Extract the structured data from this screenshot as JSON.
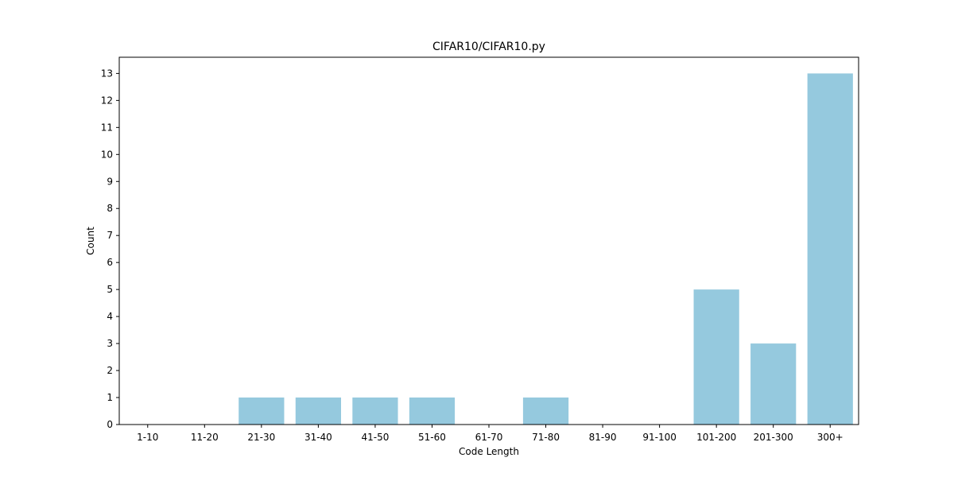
{
  "chart_data": {
    "type": "bar",
    "title": "CIFAR10/CIFAR10.py",
    "xlabel": "Code Length",
    "ylabel": "Count",
    "categories": [
      "1-10",
      "11-20",
      "21-30",
      "31-40",
      "41-50",
      "51-60",
      "61-70",
      "71-80",
      "81-90",
      "91-100",
      "101-200",
      "201-300",
      "300+"
    ],
    "values": [
      0,
      0,
      1,
      1,
      1,
      1,
      0,
      1,
      0,
      0,
      5,
      3,
      13
    ],
    "ylim": [
      0,
      13.6
    ],
    "yticks": [
      "0",
      "1",
      "2",
      "3",
      "4",
      "5",
      "6",
      "7",
      "8",
      "9",
      "10",
      "11",
      "12",
      "13"
    ],
    "grid": false,
    "bar_color": "#95c9de"
  }
}
